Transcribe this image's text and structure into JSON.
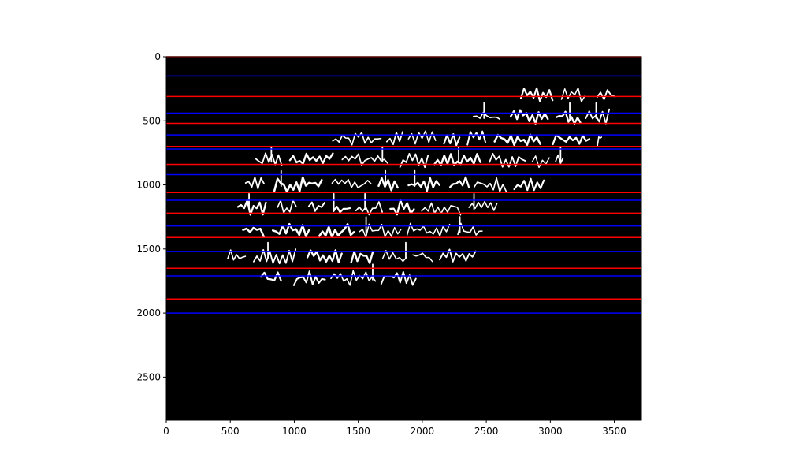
{
  "chart_data": {
    "type": "line",
    "title": "",
    "xlabel": "",
    "ylabel": "",
    "xlim": [
      0,
      3712
    ],
    "ylim": [
      2836,
      0
    ],
    "y_axis_inverted": true,
    "grid": false,
    "legend": "none",
    "background": "#000000",
    "x_ticks": [
      0,
      500,
      1000,
      1500,
      2000,
      2500,
      3000,
      3500
    ],
    "y_ticks": [
      0,
      500,
      1000,
      1500,
      2000,
      2500
    ],
    "series": [
      {
        "color": "#ff0000",
        "hlines": [
          0,
          310,
          520,
          700,
          840,
          1060,
          1220,
          1410,
          1650,
          1890
        ]
      },
      {
        "color": "#0000ff",
        "hlines": [
          150,
          440,
          610,
          720,
          920,
          1120,
          1320,
          1520,
          1710,
          2000
        ]
      }
    ],
    "image": {
      "kind": "binarized manuscript line segmentation",
      "extent": [
        0,
        3712,
        2836,
        0
      ],
      "ink_color": "#ffffff"
    }
  }
}
